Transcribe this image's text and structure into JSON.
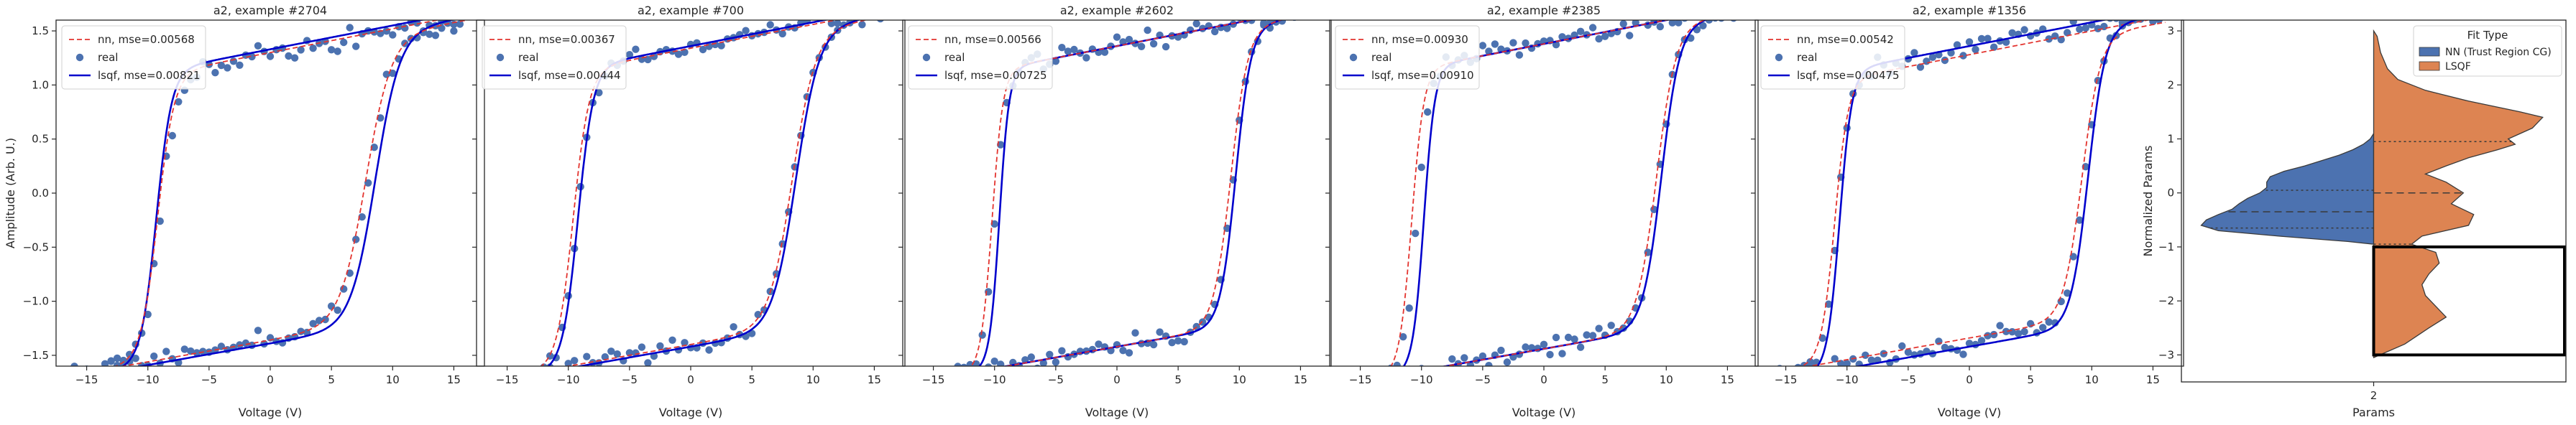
{
  "chart_data": [
    {
      "type": "scatter+line",
      "title": "a2, example #2704",
      "xlabel": "Voltage (V)",
      "ylabel": "Amplitude (Arb. U.)",
      "xlim": [
        -17.5,
        17.5
      ],
      "ylim": [
        -1.6,
        1.6
      ],
      "xticks": [
        -15,
        -10,
        -5,
        0,
        5,
        10,
        15
      ],
      "yticks": [
        -1.5,
        -1.0,
        -0.5,
        0.0,
        0.5,
        1.0,
        1.5
      ],
      "xtick_labels": [
        "−15",
        "−10",
        "−5",
        "0",
        "5",
        "10",
        "15"
      ],
      "ytick_labels": [
        "−1.5",
        "−1.0",
        "−0.5",
        "0.0",
        "0.5",
        "1.0",
        "1.5"
      ],
      "show_ytick_labels": true,
      "legend": [
        "nn, mse=0.00568",
        "real",
        "lsqf, mse=0.00821"
      ],
      "curves": {
        "nn": {
          "a": 1.32,
          "c1": -9.2,
          "w1": 1.35,
          "c2": 7.8,
          "w2": 2.1
        },
        "lsqf": {
          "a": 1.35,
          "c1": -9.3,
          "w1": 1.25,
          "c2": 8.6,
          "w2": 2.0
        }
      },
      "scatter_params": {
        "a": 1.3,
        "c1": -9.0,
        "w1": 1.3,
        "c2": 8.0,
        "w2": 2.0,
        "noise": 0.045,
        "seed": 11
      }
    },
    {
      "type": "scatter+line",
      "title": "a2, example #700",
      "xlabel": "Voltage (V)",
      "ylabel": "",
      "xlim": [
        -17.5,
        17.5
      ],
      "ylim": [
        -1.6,
        1.6
      ],
      "xticks": [
        -15,
        -10,
        -5,
        0,
        5,
        10,
        15
      ],
      "yticks": [
        -1.5,
        -1.0,
        -0.5,
        0.0,
        0.5,
        1.0,
        1.5
      ],
      "xtick_labels": [
        "−15",
        "−10",
        "−5",
        "0",
        "5",
        "10",
        "15"
      ],
      "ytick_labels": [
        "−1.5",
        "−1.0",
        "−0.5",
        "0.0",
        "0.5",
        "1.0",
        "1.5"
      ],
      "show_ytick_labels": false,
      "legend": [
        "nn, mse=0.00367",
        "real",
        "lsqf, mse=0.00444"
      ],
      "curves": {
        "nn": {
          "a": 1.36,
          "c1": -9.6,
          "w1": 1.3,
          "c2": 8.3,
          "w2": 1.9
        },
        "lsqf": {
          "a": 1.38,
          "c1": -9.2,
          "w1": 1.25,
          "c2": 8.6,
          "w2": 1.9
        }
      },
      "scatter_params": {
        "a": 1.37,
        "c1": -9.3,
        "w1": 1.3,
        "c2": 8.4,
        "w2": 1.9,
        "noise": 0.035,
        "seed": 23
      }
    },
    {
      "type": "scatter+line",
      "title": "a2, example #2602",
      "xlabel": "Voltage (V)",
      "ylabel": "",
      "xlim": [
        -17.5,
        17.5
      ],
      "ylim": [
        -1.6,
        1.6
      ],
      "xticks": [
        -15,
        -10,
        -5,
        0,
        5,
        10,
        15
      ],
      "yticks": [
        -1.5,
        -1.0,
        -0.5,
        0.0,
        0.5,
        1.0,
        1.5
      ],
      "xtick_labels": [
        "−15",
        "−10",
        "−5",
        "0",
        "5",
        "10",
        "15"
      ],
      "ytick_labels": [
        "−1.5",
        "−1.0",
        "−0.5",
        "0.0",
        "0.5",
        "1.0",
        "1.5"
      ],
      "show_ytick_labels": false,
      "legend": [
        "nn, mse=0.00566",
        "real",
        "lsqf, mse=0.00725"
      ],
      "curves": {
        "nn": {
          "a": 1.38,
          "c1": -10.2,
          "w1": 0.9,
          "c2": 9.3,
          "w2": 1.4
        },
        "lsqf": {
          "a": 1.38,
          "c1": -9.6,
          "w1": 0.8,
          "c2": 9.7,
          "w2": 1.25
        }
      },
      "scatter_params": {
        "a": 1.38,
        "c1": -10.0,
        "w1": 0.9,
        "c2": 9.5,
        "w2": 1.3,
        "noise": 0.04,
        "seed": 37
      }
    },
    {
      "type": "scatter+line",
      "title": "a2, example #2385",
      "xlabel": "Voltage (V)",
      "ylabel": "",
      "xlim": [
        -17.5,
        17.5
      ],
      "ylim": [
        -1.6,
        1.6
      ],
      "xticks": [
        -15,
        -10,
        -5,
        0,
        5,
        10,
        15
      ],
      "yticks": [
        -1.5,
        -1.0,
        -0.5,
        0.0,
        0.5,
        1.0,
        1.5
      ],
      "xtick_labels": [
        "−15",
        "−10",
        "−5",
        "0",
        "5",
        "10",
        "15"
      ],
      "ytick_labels": [
        "−1.5",
        "−1.0",
        "−0.5",
        "0.0",
        "0.5",
        "1.0",
        "1.5"
      ],
      "show_ytick_labels": false,
      "legend": [
        "nn, mse=0.00930",
        "real",
        "lsqf, mse=0.00910"
      ],
      "curves": {
        "nn": {
          "a": 1.4,
          "c1": -10.8,
          "w1": 1.0,
          "c2": 9.2,
          "w2": 1.6
        },
        "lsqf": {
          "a": 1.4,
          "c1": -9.8,
          "w1": 0.9,
          "c2": 9.6,
          "w2": 1.5
        }
      },
      "scatter_params": {
        "a": 1.4,
        "c1": -10.4,
        "w1": 1.0,
        "c2": 9.4,
        "w2": 1.6,
        "noise": 0.05,
        "seed": 51
      }
    },
    {
      "type": "scatter+line",
      "title": "a2, example #1356",
      "xlabel": "Voltage (V)",
      "ylabel": "",
      "xlim": [
        -17.5,
        17.5
      ],
      "ylim": [
        -1.6,
        1.6
      ],
      "xticks": [
        -15,
        -10,
        -5,
        0,
        5,
        10,
        15
      ],
      "yticks": [
        -1.5,
        -1.0,
        -0.5,
        0.0,
        0.5,
        1.0,
        1.5
      ],
      "xtick_labels": [
        "−15",
        "−10",
        "−5",
        "0",
        "5",
        "10",
        "15"
      ],
      "ytick_labels": [
        "−1.5",
        "−1.0",
        "−0.5",
        "0.0",
        "0.5",
        "1.0",
        "1.5"
      ],
      "show_ytick_labels": false,
      "legend": [
        "nn, mse=0.00542",
        "real",
        "lsqf, mse=0.00475"
      ],
      "curves": {
        "nn": {
          "a": 1.3,
          "c1": -11.0,
          "w1": 1.1,
          "c2": 9.2,
          "w2": 1.5
        },
        "lsqf": {
          "a": 1.38,
          "c1": -10.6,
          "w1": 1.0,
          "c2": 9.7,
          "w2": 1.4
        }
      },
      "scatter_params": {
        "a": 1.35,
        "c1": -10.8,
        "w1": 1.1,
        "c2": 9.4,
        "w2": 1.5,
        "noise": 0.045,
        "seed": 67
      }
    },
    {
      "type": "violin",
      "title": "",
      "xlabel": "Params",
      "ylabel": "Normalized Params",
      "categories": [
        "2"
      ],
      "xlim": [
        -0.5,
        0.5
      ],
      "ylim": [
        -3.5,
        3.2
      ],
      "yticks": [
        -3,
        -2,
        -1,
        0,
        1,
        2,
        3
      ],
      "ytick_labels": [
        "−3",
        "−2",
        "−1",
        "0",
        "1",
        "2",
        "3"
      ],
      "legend_title": "Fit Type",
      "series": [
        {
          "name": "NN (Trust Region CG)",
          "color": "#4c72b0",
          "density": [
            [
              -0.95,
              0.0
            ],
            [
              -0.9,
              0.15
            ],
            [
              -0.8,
              0.55
            ],
            [
              -0.7,
              0.9
            ],
            [
              -0.6,
              1.0
            ],
            [
              -0.5,
              0.97
            ],
            [
              -0.4,
              0.9
            ],
            [
              -0.3,
              0.82
            ],
            [
              -0.2,
              0.78
            ],
            [
              -0.1,
              0.73
            ],
            [
              0.0,
              0.66
            ],
            [
              0.1,
              0.62
            ],
            [
              0.2,
              0.62
            ],
            [
              0.3,
              0.6
            ],
            [
              0.4,
              0.52
            ],
            [
              0.5,
              0.4
            ],
            [
              0.6,
              0.3
            ],
            [
              0.7,
              0.2
            ],
            [
              0.8,
              0.12
            ],
            [
              0.9,
              0.06
            ],
            [
              1.0,
              0.02
            ],
            [
              1.1,
              0.0
            ]
          ],
          "quartiles": [
            -0.65,
            -0.35,
            0.05
          ]
        },
        {
          "name": "LSQF",
          "color": "#dd8452",
          "density": [
            [
              -3.05,
              0.0
            ],
            [
              -2.8,
              0.18
            ],
            [
              -2.5,
              0.32
            ],
            [
              -2.3,
              0.42
            ],
            [
              -2.1,
              0.36
            ],
            [
              -1.9,
              0.3
            ],
            [
              -1.7,
              0.28
            ],
            [
              -1.5,
              0.32
            ],
            [
              -1.3,
              0.38
            ],
            [
              -1.1,
              0.36
            ],
            [
              -0.95,
              0.22
            ],
            [
              -0.8,
              0.28
            ],
            [
              -0.6,
              0.55
            ],
            [
              -0.4,
              0.58
            ],
            [
              -0.2,
              0.45
            ],
            [
              0.0,
              0.52
            ],
            [
              0.2,
              0.42
            ],
            [
              0.35,
              0.3
            ],
            [
              0.5,
              0.42
            ],
            [
              0.65,
              0.55
            ],
            [
              0.8,
              0.72
            ],
            [
              0.9,
              0.82
            ],
            [
              1.0,
              0.78
            ],
            [
              1.2,
              0.92
            ],
            [
              1.4,
              0.98
            ],
            [
              1.5,
              0.85
            ],
            [
              1.7,
              0.55
            ],
            [
              1.9,
              0.3
            ],
            [
              2.1,
              0.14
            ],
            [
              2.3,
              0.08
            ],
            [
              2.6,
              0.04
            ],
            [
              2.9,
              0.02
            ],
            [
              3.0,
              0.0
            ]
          ],
          "quartiles": [
            -0.95,
            0.0,
            0.95
          ]
        }
      ],
      "highlight_box": {
        "x": [
          0.0,
          0.5
        ],
        "y": [
          -3.0,
          -1.0
        ]
      }
    }
  ]
}
